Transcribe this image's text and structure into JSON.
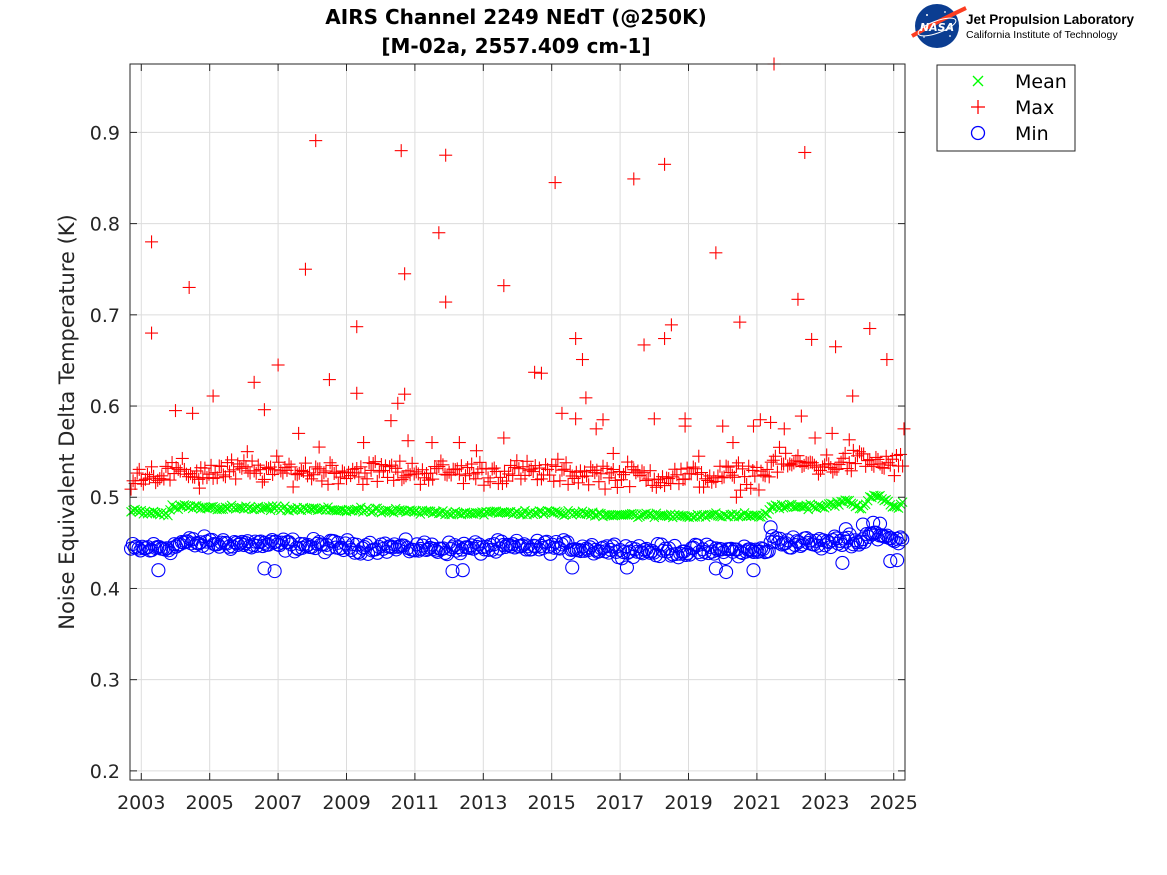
{
  "logo": {
    "org": "Jet Propulsion Laboratory",
    "sub": "California Institute of Technology",
    "badge": "NASA"
  },
  "colors": {
    "mean": "#00ff00",
    "max": "#ff0000",
    "min": "#0000ff",
    "grid": "#dcdcdc"
  },
  "chart_data": {
    "type": "scatter",
    "title": "AIRS Channel 2249 NEdT (@250K)",
    "subtitle": "[M-02a, 2557.409 cm-1]",
    "xlabel": "",
    "ylabel": "Noise Equivalent Delta Temperature (K)",
    "xlim": [
      2002.67,
      2025.33
    ],
    "ylim": [
      0.19,
      0.975
    ],
    "x_ticks": [
      "2003",
      "2005",
      "2007",
      "2009",
      "2011",
      "2013",
      "2015",
      "2017",
      "2019",
      "2021",
      "2023",
      "2025"
    ],
    "y_ticks": [
      "0.2",
      "0.3",
      "0.4",
      "0.5",
      "0.6",
      "0.7",
      "0.8",
      "0.9"
    ],
    "grid": true,
    "legend_position": "outside-top-right",
    "series": [
      {
        "name": "Mean",
        "marker": "x",
        "trend": [
          [
            2002.7,
            0.485
          ],
          [
            2003.8,
            0.481
          ],
          [
            2003.9,
            0.489
          ],
          [
            2006.0,
            0.488
          ],
          [
            2009.0,
            0.486
          ],
          [
            2012.0,
            0.483
          ],
          [
            2015.0,
            0.483
          ],
          [
            2018.0,
            0.48
          ],
          [
            2021.3,
            0.48
          ],
          [
            2021.4,
            0.49
          ],
          [
            2023.0,
            0.49
          ],
          [
            2023.7,
            0.496
          ],
          [
            2024.0,
            0.487
          ],
          [
            2024.3,
            0.5
          ],
          [
            2024.8,
            0.498
          ],
          [
            2025.0,
            0.487
          ],
          [
            2025.3,
            0.494
          ]
        ],
        "spread": 0.004
      },
      {
        "name": "Max",
        "marker": "+",
        "trend": [
          [
            2002.7,
            0.525
          ],
          [
            2006.0,
            0.529
          ],
          [
            2010.0,
            0.528
          ],
          [
            2015.0,
            0.527
          ],
          [
            2019.0,
            0.522
          ],
          [
            2021.3,
            0.525
          ],
          [
            2021.4,
            0.538
          ],
          [
            2023.0,
            0.535
          ],
          [
            2024.0,
            0.54
          ],
          [
            2025.3,
            0.535
          ]
        ],
        "spread": 0.02,
        "outliers": [
          [
            2003.3,
            0.78
          ],
          [
            2003.3,
            0.68
          ],
          [
            2004.4,
            0.73
          ],
          [
            2004.5,
            0.592
          ],
          [
            2004.0,
            0.595
          ],
          [
            2005.1,
            0.611
          ],
          [
            2006.3,
            0.626
          ],
          [
            2006.6,
            0.596
          ],
          [
            2007.0,
            0.645
          ],
          [
            2007.6,
            0.57
          ],
          [
            2007.8,
            0.75
          ],
          [
            2008.1,
            0.891
          ],
          [
            2008.5,
            0.629
          ],
          [
            2009.3,
            0.614
          ],
          [
            2009.3,
            0.687
          ],
          [
            2009.5,
            0.56
          ],
          [
            2010.3,
            0.584
          ],
          [
            2010.5,
            0.603
          ],
          [
            2010.6,
            0.88
          ],
          [
            2010.7,
            0.745
          ],
          [
            2010.7,
            0.613
          ],
          [
            2010.8,
            0.562
          ],
          [
            2011.5,
            0.56
          ],
          [
            2011.7,
            0.79
          ],
          [
            2011.9,
            0.714
          ],
          [
            2011.9,
            0.875
          ],
          [
            2012.3,
            0.56
          ],
          [
            2013.6,
            0.732
          ],
          [
            2013.6,
            0.565
          ],
          [
            2014.5,
            0.637
          ],
          [
            2014.7,
            0.636
          ],
          [
            2015.1,
            0.845
          ],
          [
            2015.3,
            0.592
          ],
          [
            2015.7,
            0.674
          ],
          [
            2015.7,
            0.586
          ],
          [
            2015.9,
            0.651
          ],
          [
            2016.0,
            0.609
          ],
          [
            2016.3,
            0.575
          ],
          [
            2016.5,
            0.585
          ],
          [
            2017.4,
            0.849
          ],
          [
            2017.7,
            0.667
          ],
          [
            2018.0,
            0.586
          ],
          [
            2018.3,
            0.674
          ],
          [
            2018.3,
            0.865
          ],
          [
            2018.5,
            0.689
          ],
          [
            2018.9,
            0.586
          ],
          [
            2018.9,
            0.578
          ],
          [
            2019.8,
            0.768
          ],
          [
            2020.0,
            0.578
          ],
          [
            2020.3,
            0.56
          ],
          [
            2020.5,
            0.692
          ],
          [
            2020.9,
            0.578
          ],
          [
            2021.1,
            0.585
          ],
          [
            2021.4,
            0.582
          ],
          [
            2021.5,
            0.975
          ],
          [
            2021.8,
            0.575
          ],
          [
            2022.2,
            0.717
          ],
          [
            2022.3,
            0.589
          ],
          [
            2022.4,
            0.878
          ],
          [
            2022.6,
            0.673
          ],
          [
            2023.2,
            0.57
          ],
          [
            2023.3,
            0.665
          ],
          [
            2023.7,
            0.563
          ],
          [
            2023.8,
            0.611
          ],
          [
            2024.3,
            0.685
          ],
          [
            2024.8,
            0.651
          ],
          [
            2025.3,
            0.575
          ],
          [
            2004.7,
            0.51
          ],
          [
            2006.1,
            0.55
          ],
          [
            2008.2,
            0.555
          ],
          [
            2012.8,
            0.551
          ],
          [
            2016.8,
            0.548
          ],
          [
            2019.3,
            0.545
          ],
          [
            2020.4,
            0.5
          ],
          [
            2022.7,
            0.565
          ]
        ]
      },
      {
        "name": "Min",
        "marker": "o",
        "trend": [
          [
            2002.7,
            0.443
          ],
          [
            2003.9,
            0.445
          ],
          [
            2004.2,
            0.45
          ],
          [
            2006.0,
            0.449
          ],
          [
            2009.0,
            0.446
          ],
          [
            2012.0,
            0.444
          ],
          [
            2015.0,
            0.446
          ],
          [
            2018.0,
            0.441
          ],
          [
            2021.3,
            0.441
          ],
          [
            2021.4,
            0.452
          ],
          [
            2023.0,
            0.449
          ],
          [
            2023.8,
            0.455
          ],
          [
            2024.0,
            0.448
          ],
          [
            2024.3,
            0.462
          ],
          [
            2024.8,
            0.455
          ],
          [
            2025.3,
            0.45
          ]
        ],
        "spread": 0.01,
        "outliers": [
          [
            2003.5,
            0.42
          ],
          [
            2006.6,
            0.422
          ],
          [
            2006.9,
            0.419
          ],
          [
            2012.1,
            0.419
          ],
          [
            2012.4,
            0.42
          ],
          [
            2015.6,
            0.423
          ],
          [
            2017.2,
            0.423
          ],
          [
            2019.8,
            0.422
          ],
          [
            2020.1,
            0.418
          ],
          [
            2020.9,
            0.42
          ],
          [
            2023.5,
            0.428
          ],
          [
            2024.9,
            0.43
          ],
          [
            2025.1,
            0.431
          ],
          [
            2021.4,
            0.467
          ],
          [
            2024.1,
            0.47
          ],
          [
            2024.4,
            0.472
          ],
          [
            2024.6,
            0.471
          ],
          [
            2023.6,
            0.465
          ]
        ]
      }
    ]
  }
}
